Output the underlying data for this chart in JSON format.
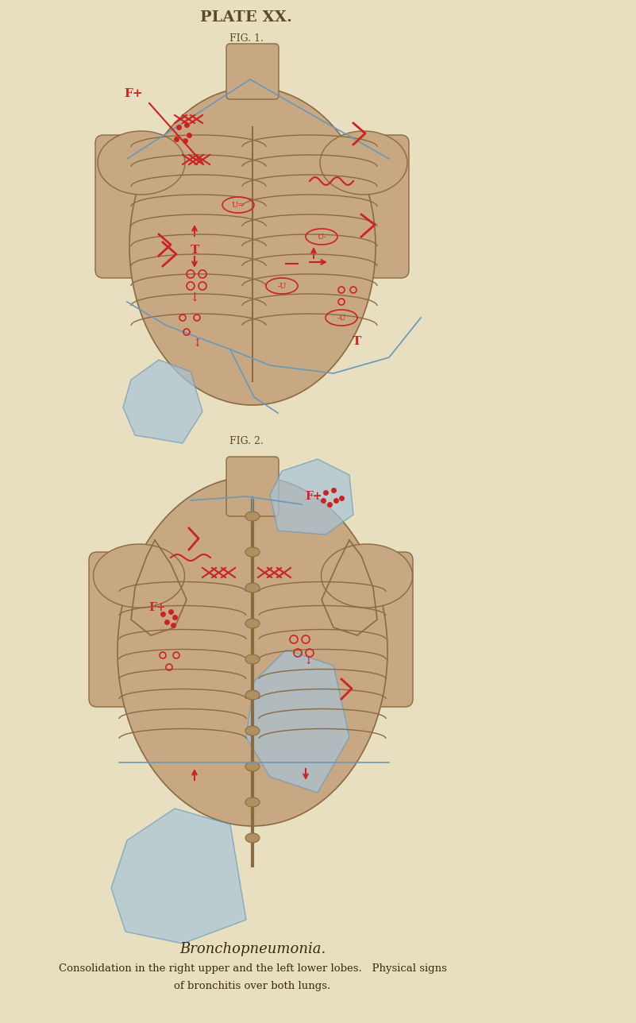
{
  "bg_color": "#e8dfc0",
  "page_bg": "#d4c9a0",
  "title": "PLATE XX.",
  "fig1_label": "FIG. 1.",
  "fig2_label": "FIG. 2.",
  "caption_line1": "Bronchopneumonia.",
  "caption_line2": "Consolidation in the right upper and the left lower lobes.   Physical signs",
  "caption_line3": "of bronchitis over both lungs.",
  "title_color": "#5c4a2a",
  "caption_color": "#3a2a10",
  "body_color": "#c8a882",
  "blue_region": "#a8c4d8",
  "red_annotation": "#cc2222",
  "bone_color": "#b09060",
  "line_color": "#6699bb"
}
